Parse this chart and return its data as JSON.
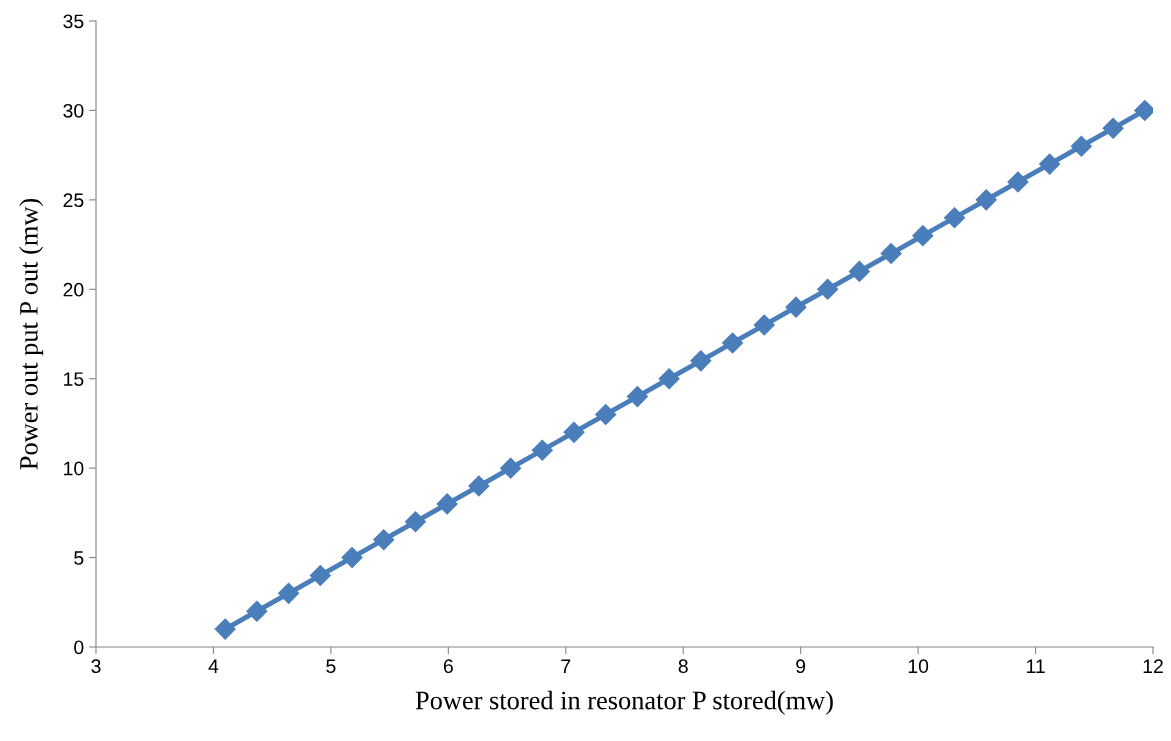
{
  "chart_data": {
    "type": "line",
    "xlabel": "Power stored in resonator P stored(mw)",
    "ylabel": "Power out put P out (mw)",
    "x": [
      4.1,
      4.37,
      4.64,
      4.91,
      5.18,
      5.45,
      5.72,
      5.99,
      6.26,
      6.53,
      6.8,
      7.07,
      7.34,
      7.61,
      7.88,
      8.15,
      8.42,
      8.69,
      8.96,
      9.23,
      9.5,
      9.77,
      10.04,
      10.31,
      10.58,
      10.85,
      11.12,
      11.39,
      11.66,
      11.93
    ],
    "series": [
      {
        "color": "#4a7ebb",
        "values": [
          1,
          2,
          3,
          4,
          5,
          6,
          7,
          8,
          9,
          10,
          11,
          12,
          13,
          14,
          15,
          16,
          17,
          18,
          19,
          20,
          21,
          22,
          23,
          24,
          25,
          26,
          27,
          28,
          29,
          30
        ]
      }
    ],
    "xlim": [
      3,
      12
    ],
    "xticks": [
      3,
      4,
      5,
      6,
      7,
      8,
      9,
      10,
      11,
      12
    ],
    "ylim": [
      0,
      35
    ],
    "yticks": [
      0,
      5,
      10,
      15,
      20,
      25,
      30,
      35
    ],
    "grid": false,
    "legend": false,
    "marker": "diamond",
    "line_style": "solid"
  }
}
